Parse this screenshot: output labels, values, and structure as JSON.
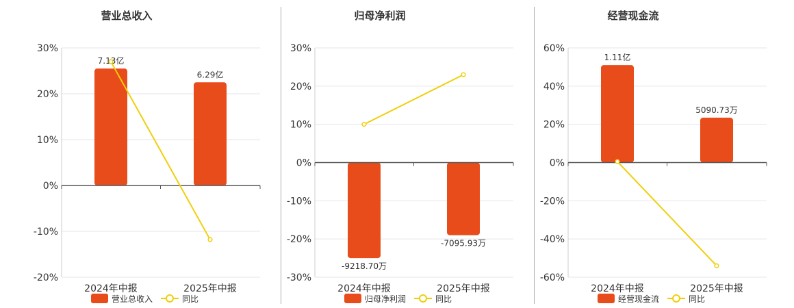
{
  "colors": {
    "bar": "#e84c1b",
    "line": "#f0cf0a",
    "grid": "#e6e6ee",
    "axis": "#555555",
    "text": "#333333"
  },
  "chart_data": [
    {
      "type": "bar",
      "title": "营业总收入",
      "categories": [
        "2024年中报",
        "2025年中报"
      ],
      "series": [
        {
          "name": "营业总收入",
          "type": "bar",
          "values": [
            25.5,
            22.5
          ],
          "labels": [
            "7.13亿",
            "6.29亿"
          ]
        },
        {
          "name": "同比",
          "type": "line",
          "values": [
            27.0,
            -11.8
          ]
        }
      ],
      "yticks": [
        30,
        20,
        10,
        0,
        -10,
        -20
      ],
      "ytick_labels": [
        "30%",
        "20%",
        "10%",
        "0%",
        "-10%",
        "-20%"
      ],
      "ylim": [
        -20,
        30
      ],
      "legend": "bottom-center"
    },
    {
      "type": "bar",
      "title": "归母净利润",
      "categories": [
        "2024年中报",
        "2025年中报"
      ],
      "series": [
        {
          "name": "归母净利润",
          "type": "bar",
          "values": [
            -25.0,
            -19.0
          ],
          "labels": [
            "-9218.70万",
            "-7095.93万"
          ]
        },
        {
          "name": "同比",
          "type": "line",
          "values": [
            10.0,
            23.0
          ]
        }
      ],
      "yticks": [
        30,
        20,
        10,
        0,
        -10,
        -20,
        -30
      ],
      "ytick_labels": [
        "30%",
        "20%",
        "10%",
        "0%",
        "-10%",
        "-20%",
        "-30%"
      ],
      "ylim": [
        -30,
        30
      ],
      "legend": "bottom-center"
    },
    {
      "type": "bar",
      "title": "经营现金流",
      "categories": [
        "2024年中报",
        "2025年中报"
      ],
      "series": [
        {
          "name": "经营现金流",
          "type": "bar",
          "values": [
            51.0,
            23.5
          ],
          "labels": [
            "1.11亿",
            "5090.73万"
          ]
        },
        {
          "name": "同比",
          "type": "line",
          "values": [
            0.5,
            -54.0
          ]
        }
      ],
      "yticks": [
        60,
        40,
        20,
        0,
        -20,
        -40,
        -60
      ],
      "ytick_labels": [
        "60%",
        "40%",
        "20%",
        "0%",
        "-20%",
        "-40%",
        "-60%"
      ],
      "ylim": [
        -60,
        60
      ],
      "legend": "bottom-center"
    }
  ]
}
